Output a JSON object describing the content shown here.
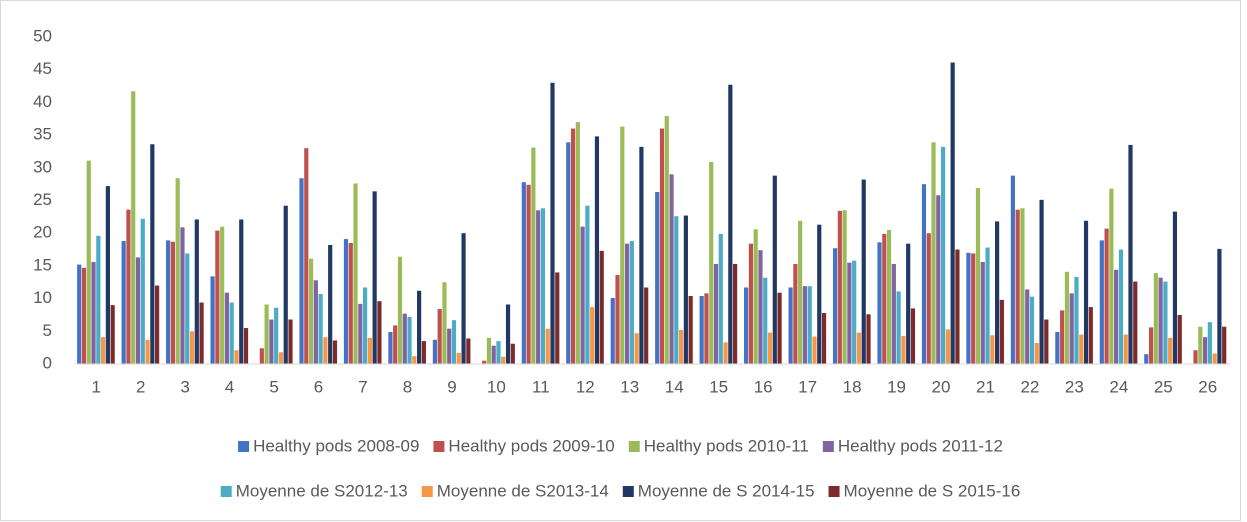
{
  "chart_data": {
    "type": "bar",
    "categories": [
      "1",
      "2",
      "3",
      "4",
      "5",
      "6",
      "7",
      "8",
      "9",
      "10",
      "11",
      "12",
      "13",
      "14",
      "15",
      "16",
      "17",
      "18",
      "19",
      "20",
      "21",
      "22",
      "23",
      "24",
      "25",
      "26"
    ],
    "series": [
      {
        "name": "Healthy pods 2008-09",
        "color": "#4472c4",
        "values": [
          15.2,
          18.8,
          18.9,
          13.4,
          0,
          28.4,
          19.1,
          4.9,
          3.7,
          0,
          27.8,
          33.9,
          10.1,
          26.3,
          10.4,
          11.7,
          11.7,
          17.7,
          18.6,
          27.5,
          17.0,
          28.8,
          4.9,
          18.9,
          1.5,
          0
        ]
      },
      {
        "name": "Healthy pods 2009-10",
        "color": "#c0504d",
        "values": [
          14.7,
          23.6,
          18.7,
          20.4,
          2.4,
          33.0,
          18.5,
          5.9,
          8.4,
          0.5,
          27.4,
          36.0,
          13.6,
          36.0,
          10.8,
          18.4,
          15.3,
          23.4,
          19.9,
          20.0,
          16.9,
          23.6,
          8.2,
          20.7,
          5.6,
          2.1
        ]
      },
      {
        "name": "Healthy pods 2010-11",
        "color": "#9bbb59",
        "values": [
          31.1,
          41.7,
          28.4,
          21.0,
          9.1,
          16.1,
          27.6,
          16.4,
          12.5,
          4.0,
          33.1,
          37.0,
          36.3,
          37.9,
          30.9,
          20.6,
          21.9,
          23.5,
          20.5,
          33.9,
          26.9,
          23.8,
          14.1,
          26.8,
          13.9,
          5.7
        ]
      },
      {
        "name": "Healthy pods 2011-12",
        "color": "#8064a2",
        "values": [
          15.6,
          16.3,
          20.9,
          10.9,
          6.8,
          12.8,
          9.2,
          7.7,
          5.4,
          2.8,
          23.5,
          21.0,
          18.4,
          29.0,
          15.3,
          17.4,
          11.9,
          15.5,
          15.3,
          25.8,
          15.6,
          11.4,
          10.8,
          14.4,
          13.2,
          4.1
        ]
      },
      {
        "name": "Moyenne de S2012-13",
        "color": "#4bacc6",
        "values": [
          19.6,
          22.2,
          16.9,
          9.4,
          8.6,
          10.7,
          11.7,
          7.2,
          6.7,
          3.5,
          23.8,
          24.2,
          18.8,
          22.6,
          19.9,
          13.2,
          11.9,
          15.8,
          11.1,
          33.2,
          17.8,
          10.3,
          13.3,
          17.5,
          12.6,
          6.4
        ]
      },
      {
        "name": "Moyenne de S2013-14",
        "color": "#f79646",
        "values": [
          4.1,
          3.7,
          5.0,
          2.1,
          1.8,
          4.1,
          4.0,
          1.2,
          1.7,
          1.1,
          5.4,
          8.7,
          4.7,
          5.2,
          3.3,
          4.8,
          4.2,
          4.8,
          4.3,
          5.3,
          4.4,
          3.2,
          4.5,
          4.5,
          4.0,
          1.6
        ]
      },
      {
        "name": "Moyenne de S 2014-15",
        "color": "#203864",
        "values": [
          27.2,
          33.6,
          22.1,
          22.1,
          24.2,
          18.2,
          26.4,
          11.2,
          20.0,
          9.1,
          43.0,
          34.8,
          33.2,
          22.7,
          42.7,
          28.8,
          21.3,
          28.2,
          18.4,
          46.1,
          21.8,
          25.1,
          21.9,
          33.5,
          23.3,
          17.6
        ]
      },
      {
        "name": "Moyenne de S 2015-16",
        "color": "#7b2c2a",
        "values": [
          9.0,
          12.0,
          9.4,
          5.5,
          6.8,
          3.6,
          9.6,
          3.5,
          3.9,
          3.1,
          14.0,
          17.3,
          11.7,
          10.4,
          15.3,
          10.9,
          7.8,
          7.6,
          8.5,
          17.5,
          9.8,
          6.8,
          8.7,
          12.6,
          7.5,
          5.7
        ]
      }
    ],
    "ylim": [
      0,
      50
    ],
    "yticks": [
      0,
      5,
      10,
      15,
      20,
      25,
      30,
      35,
      40,
      45,
      50
    ],
    "grid": false
  }
}
